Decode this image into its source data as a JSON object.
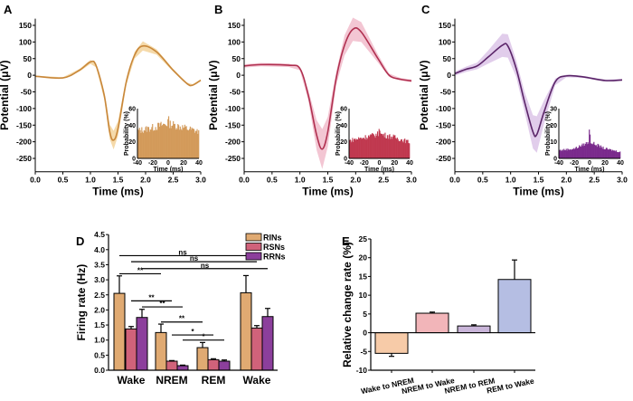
{
  "chart_data": [
    {
      "type": "line",
      "panel": "A",
      "xlabel": "Time (ms)",
      "ylabel": "Potential (μV)",
      "xlim": [
        0,
        3
      ],
      "ylim": [
        -290,
        170
      ],
      "xticks": [
        "0.0",
        "0.5",
        "1.0",
        "1.5",
        "2.0",
        "2.5",
        "3.0"
      ],
      "yticks": [
        "150",
        "100",
        "50",
        "0",
        "-50",
        "-100",
        "-150",
        "-200",
        "-250"
      ],
      "color": "#c8873a",
      "band_color": "#f3d39b",
      "x": [
        0,
        0.5,
        0.8,
        1.0,
        1.1,
        1.25,
        1.35,
        1.42,
        1.5,
        1.65,
        1.8,
        1.95,
        2.2,
        2.5,
        2.75,
        2.85,
        3.0
      ],
      "y": [
        -3,
        -8,
        15,
        40,
        30,
        -60,
        -170,
        -195,
        -160,
        -20,
        60,
        88,
        70,
        15,
        -25,
        -30,
        -15
      ],
      "sem": [
        2,
        2,
        4,
        6,
        6,
        12,
        22,
        28,
        22,
        10,
        10,
        14,
        8,
        4,
        3,
        3,
        3
      ],
      "inset": {
        "type": "histogram",
        "xlabel": "Time (ms)",
        "ylabel": "Probability (%)",
        "xlim": [
          -40,
          40
        ],
        "ylim": [
          0,
          60
        ],
        "xticks": [
          "-40",
          "-20",
          "0",
          "20",
          "40"
        ],
        "yticks": [
          "0",
          "20",
          "40",
          "60"
        ],
        "color": "#d39a5a",
        "envelope_x": [
          -40,
          -20,
          -1,
          0,
          1,
          20,
          40
        ],
        "envelope_y": [
          34,
          38,
          43,
          50,
          43,
          38,
          33
        ]
      }
    },
    {
      "type": "line",
      "panel": "B",
      "xlabel": "Time (ms)",
      "ylabel": "Potential (μV)",
      "xlim": [
        0,
        3
      ],
      "ylim": [
        -290,
        170
      ],
      "xticks": [
        "0.0",
        "0.5",
        "1.0",
        "1.5",
        "2.0",
        "2.5",
        "3.0"
      ],
      "yticks": [
        "150",
        "100",
        "50",
        "0",
        "-50",
        "-100",
        "-150",
        "-200",
        "-250"
      ],
      "color": "#b03050",
      "band_color": "#f1bccb",
      "x": [
        0,
        0.3,
        0.8,
        1.0,
        1.15,
        1.3,
        1.4,
        1.5,
        1.65,
        1.8,
        1.95,
        2.1,
        2.4,
        2.6,
        2.8,
        3.0
      ],
      "y": [
        28,
        32,
        30,
        20,
        -60,
        -180,
        -222,
        -170,
        -10,
        90,
        138,
        130,
        50,
        0,
        -12,
        -17
      ],
      "sem": [
        5,
        5,
        5,
        5,
        15,
        45,
        60,
        45,
        20,
        30,
        35,
        30,
        12,
        5,
        4,
        4
      ],
      "inset": {
        "type": "histogram",
        "xlabel": "Time (ms)",
        "ylabel": "Probability (%)",
        "xlim": [
          -40,
          40
        ],
        "ylim": [
          0,
          60
        ],
        "xticks": [
          "-40",
          "-20",
          "0",
          "20",
          "40"
        ],
        "yticks": [
          "0",
          "20",
          "40",
          "60"
        ],
        "color": "#c0384f",
        "envelope_x": [
          -40,
          -20,
          -1,
          0,
          1,
          20,
          40
        ],
        "envelope_y": [
          22,
          26,
          30,
          48,
          30,
          26,
          20
        ]
      }
    },
    {
      "type": "line",
      "panel": "C",
      "xlabel": "Time (ms)",
      "ylabel": "Potential (μV)",
      "xlim": [
        0,
        3
      ],
      "ylim": [
        -290,
        170
      ],
      "xticks": [
        "0.0",
        "0.5",
        "1.0",
        "1.5",
        "2.0",
        "2.5",
        "3.0"
      ],
      "yticks": [
        "150",
        "100",
        "50",
        "0",
        "-50",
        "-100",
        "-150",
        "-200",
        "-250"
      ],
      "color": "#5a2468",
      "band_color": "#dcc4e8",
      "x": [
        0,
        0.2,
        0.4,
        0.6,
        0.85,
        0.95,
        1.1,
        1.25,
        1.4,
        1.47,
        1.6,
        1.8,
        2.0,
        2.3,
        2.7,
        3.0
      ],
      "y": [
        5,
        18,
        28,
        55,
        90,
        88,
        20,
        -80,
        -170,
        -178,
        -110,
        -20,
        -2,
        -5,
        -16,
        -14
      ],
      "sem": [
        6,
        8,
        10,
        20,
        35,
        35,
        25,
        30,
        50,
        55,
        35,
        10,
        4,
        3,
        3,
        3
      ],
      "inset": {
        "type": "histogram",
        "xlabel": "Time (ms)",
        "ylabel": "Probability (%)",
        "xlim": [
          -40,
          40
        ],
        "ylim": [
          0,
          30
        ],
        "xticks": [
          "-40",
          "-20",
          "0",
          "20",
          "40"
        ],
        "yticks": [
          "0",
          "10",
          "20",
          "30"
        ],
        "color": "#7a2a8c",
        "envelope_x": [
          -40,
          -20,
          -1,
          0,
          1,
          20,
          40
        ],
        "envelope_y": [
          5,
          6,
          10,
          23,
          10,
          6,
          4
        ]
      }
    },
    {
      "type": "bar",
      "panel": "D",
      "ylabel": "Firing rate (Hz)",
      "ylim": [
        0,
        4.5
      ],
      "yticks": [
        "0.0",
        "0.5",
        "1.0",
        "1.5",
        "2.0",
        "2.5",
        "3.0",
        "3.5",
        "4.0",
        "4.5"
      ],
      "categories": [
        "Wake",
        "NREM",
        "REM",
        "Wake"
      ],
      "legend": "top-right",
      "series": [
        {
          "name": "RINs",
          "color": "#e0aa72",
          "values": [
            2.55,
            1.25,
            0.75,
            2.57
          ],
          "errors": [
            0.58,
            0.28,
            0.17,
            0.57
          ]
        },
        {
          "name": "RSNs",
          "color": "#d0627a",
          "values": [
            1.37,
            0.3,
            0.35,
            1.4
          ],
          "errors": [
            0.08,
            0.02,
            0.03,
            0.08
          ]
        },
        {
          "name": "RRNs",
          "color": "#8c3f9c",
          "values": [
            1.75,
            0.15,
            0.3,
            1.78
          ],
          "errors": [
            0.27,
            0.02,
            0.04,
            0.27
          ]
        }
      ],
      "significance": [
        {
          "label": "ns",
          "y": 3.8,
          "from": [
            0,
            0
          ],
          "to": [
            3,
            0
          ]
        },
        {
          "label": "ns",
          "y": 3.6,
          "from": [
            0,
            1
          ],
          "to": [
            3,
            1
          ]
        },
        {
          "label": "ns",
          "y": 3.37,
          "from": [
            0,
            2
          ],
          "to": [
            3,
            2
          ]
        },
        {
          "label": "**",
          "y": 3.2,
          "from": [
            0,
            0
          ],
          "to": [
            1,
            0
          ]
        },
        {
          "label": "**",
          "y": 2.3,
          "from": [
            0,
            1
          ],
          "to": [
            1,
            1
          ]
        },
        {
          "label": "**",
          "y": 2.1,
          "from": [
            0,
            2
          ],
          "to": [
            1,
            2
          ]
        },
        {
          "label": "**",
          "y": 1.6,
          "from": [
            1,
            0
          ],
          "to": [
            2,
            0
          ]
        },
        {
          "label": "*",
          "y": 1.17,
          "from": [
            1,
            1
          ],
          "to": [
            2,
            1
          ]
        },
        {
          "label": "*",
          "y": 1.0,
          "from": [
            1,
            2
          ],
          "to": [
            2,
            2
          ]
        }
      ]
    },
    {
      "type": "bar",
      "panel": "E",
      "ylabel": "Relative change rate (%)",
      "ylim": [
        -10,
        25
      ],
      "yticks": [
        "-10",
        "-5",
        "0",
        "5",
        "10",
        "15",
        "20",
        "25"
      ],
      "categories": [
        "Wake to NREM",
        "NREM to Wake",
        "NREM to REM",
        "REM to Wake"
      ],
      "values": [
        -5.5,
        5.2,
        1.8,
        14.2
      ],
      "errors": [
        0.8,
        0.3,
        0.3,
        5.2
      ],
      "colors": [
        "#f7cba8",
        "#f2b5b9",
        "#c9b5d9",
        "#b5bee3"
      ]
    }
  ]
}
